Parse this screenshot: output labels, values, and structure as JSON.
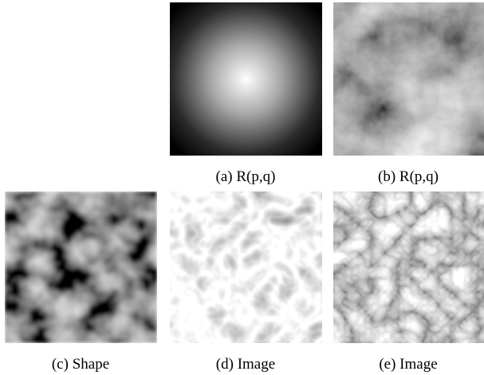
{
  "panels": [
    {
      "caption": "(a) R(p,q)"
    },
    {
      "caption": "(b) R(p,q)"
    },
    {
      "caption": "(c) Shape"
    },
    {
      "caption": "(d) Image"
    },
    {
      "caption": "(e) Image"
    }
  ]
}
